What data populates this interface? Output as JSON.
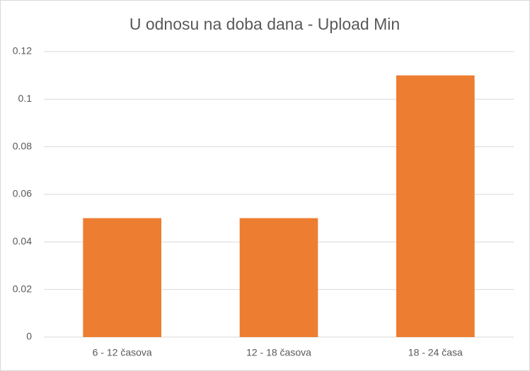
{
  "chart_data": {
    "type": "bar",
    "title": "U odnosu na doba dana - Upload Min",
    "categories": [
      "6 - 12 časova",
      "12 - 18 časova",
      "18 - 24 časa"
    ],
    "values": [
      0.05,
      0.05,
      0.11
    ],
    "color": "#ed7d31",
    "ylim": [
      0,
      0.12
    ],
    "yticks": [
      0,
      0.02,
      0.04,
      0.06,
      0.08,
      0.1,
      0.12
    ],
    "grid": true
  }
}
